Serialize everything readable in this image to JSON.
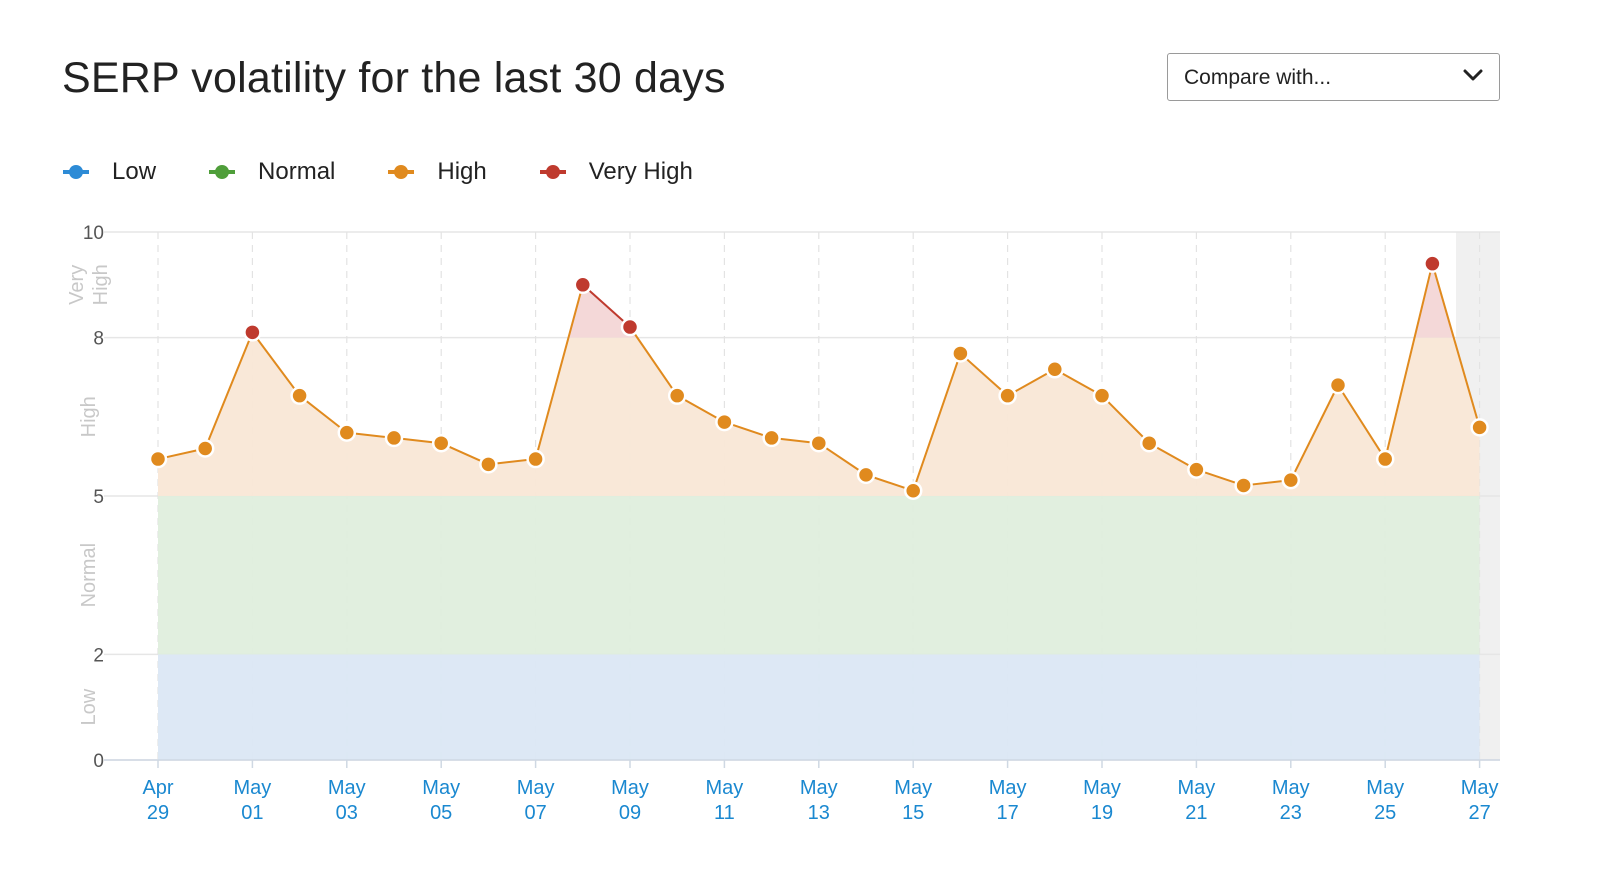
{
  "header": {
    "title": "SERP volatility for the last 30 days",
    "compare_placeholder": "Compare with...",
    "compare_icon": "chevron-down-icon"
  },
  "legend": [
    {
      "label": "Low",
      "color": "#2d8bd6"
    },
    {
      "label": "Normal",
      "color": "#4f9e3a"
    },
    {
      "label": "High",
      "color": "#e08a1e"
    },
    {
      "label": "Very High",
      "color": "#bf3a2e"
    }
  ],
  "colors": {
    "low_band": "#dbe7f4",
    "normal_band": "#dfeedd",
    "high_band": "#f9e7d6",
    "very_high_band": "#f3d6d6",
    "line_high": "#e08a1e",
    "line_very_high": "#bf3a2e",
    "axis_tick": "#1a88d0",
    "today_shade": "#f0f0f0"
  },
  "chart_data": {
    "type": "line",
    "title": "SERP volatility for the last 30 days",
    "ylim": [
      0,
      10
    ],
    "y_ticks": [
      0,
      2,
      5,
      8,
      10
    ],
    "bands": [
      {
        "label": "Low",
        "from": 0,
        "to": 2
      },
      {
        "label": "Normal",
        "from": 2,
        "to": 5
      },
      {
        "label": "High",
        "from": 5,
        "to": 8
      },
      {
        "label": "Very High",
        "from": 8,
        "to": 10
      }
    ],
    "x_tick_labels": [
      [
        "Apr",
        "29"
      ],
      [
        "May",
        "01"
      ],
      [
        "May",
        "03"
      ],
      [
        "May",
        "05"
      ],
      [
        "May",
        "07"
      ],
      [
        "May",
        "09"
      ],
      [
        "May",
        "11"
      ],
      [
        "May",
        "13"
      ],
      [
        "May",
        "15"
      ],
      [
        "May",
        "17"
      ],
      [
        "May",
        "19"
      ],
      [
        "May",
        "21"
      ],
      [
        "May",
        "23"
      ],
      [
        "May",
        "25"
      ],
      [
        "May",
        "27"
      ]
    ],
    "x": [
      "Apr 29",
      "Apr 30",
      "May 01",
      "May 02",
      "May 03",
      "May 04",
      "May 05",
      "May 06",
      "May 07",
      "May 08",
      "May 09",
      "May 10",
      "May 11",
      "May 12",
      "May 13",
      "May 14",
      "May 15",
      "May 16",
      "May 17",
      "May 18",
      "May 19",
      "May 20",
      "May 21",
      "May 22",
      "May 23",
      "May 24",
      "May 25",
      "May 26",
      "May 27"
    ],
    "values": [
      5.7,
      5.9,
      8.1,
      6.9,
      6.2,
      6.1,
      6.0,
      5.6,
      5.7,
      9.0,
      8.2,
      6.9,
      6.4,
      6.1,
      6.0,
      5.4,
      5.1,
      7.7,
      6.9,
      7.4,
      6.9,
      6.0,
      5.5,
      5.2,
      5.3,
      7.1,
      5.7,
      9.4,
      6.3
    ],
    "grid": true,
    "legend_position": "top-left"
  }
}
